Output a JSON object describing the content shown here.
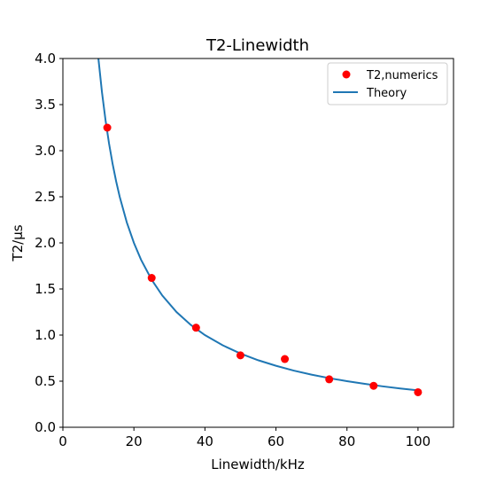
{
  "chart_data": {
    "type": "scatter",
    "title": "T2-Linewidth",
    "xlabel": "Linewidth/kHz",
    "ylabel": "T2/μs",
    "xlim": [
      0,
      110
    ],
    "ylim": [
      0,
      4.0
    ],
    "xticks": [
      0,
      20,
      40,
      60,
      80,
      100
    ],
    "yticks": [
      0.0,
      0.5,
      1.0,
      1.5,
      2.0,
      2.5,
      3.0,
      3.5,
      4.0
    ],
    "xtick_labels": [
      "0",
      "20",
      "40",
      "60",
      "80",
      "100"
    ],
    "ytick_labels": [
      "0.0",
      "0.5",
      "1.0",
      "1.5",
      "2.0",
      "2.5",
      "3.0",
      "3.5",
      "4.0"
    ],
    "grid": false,
    "legend_position": "top-right",
    "series": [
      {
        "name": "T2,numerics",
        "kind": "scatter",
        "color": "#ff0000",
        "x": [
          12.5,
          25,
          37.5,
          50,
          62.5,
          75,
          87.5,
          100
        ],
        "y": [
          3.25,
          1.62,
          1.08,
          0.78,
          0.74,
          0.52,
          0.45,
          0.38
        ]
      },
      {
        "name": "Theory",
        "kind": "line",
        "color": "#1f77b4",
        "formula": "T2 = 40 / Linewidth",
        "x_range": [
          10,
          100
        ],
        "x": [
          10,
          11,
          12,
          13,
          14,
          15,
          16,
          18,
          20,
          22,
          25,
          28,
          32,
          36,
          40,
          45,
          50,
          55,
          60,
          65,
          70,
          75,
          80,
          85,
          90,
          95,
          100
        ],
        "y": [
          4.0,
          3.636,
          3.333,
          3.077,
          2.857,
          2.667,
          2.5,
          2.222,
          2.0,
          1.818,
          1.6,
          1.429,
          1.25,
          1.111,
          1.0,
          0.889,
          0.8,
          0.727,
          0.667,
          0.615,
          0.571,
          0.533,
          0.5,
          0.471,
          0.444,
          0.421,
          0.4
        ]
      }
    ]
  }
}
